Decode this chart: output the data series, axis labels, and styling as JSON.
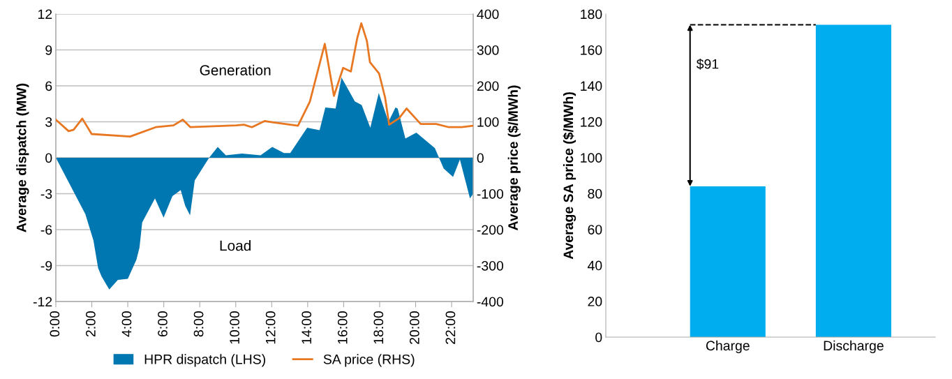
{
  "chart_data": [
    {
      "type": "area",
      "ylabel": "Average dispatch (MW)",
      "y2label": "Average price ($/MWh)",
      "annotations": [
        "Generation",
        "Load"
      ],
      "xlim": [
        0,
        23.2
      ],
      "xticks": [
        {
          "value": 0,
          "label": "0:00"
        },
        {
          "value": 2,
          "label": "2:00"
        },
        {
          "value": 4,
          "label": "4:00"
        },
        {
          "value": 6,
          "label": "6:00"
        },
        {
          "value": 8,
          "label": "8:00"
        },
        {
          "value": 10,
          "label": "10:00"
        },
        {
          "value": 12,
          "label": "12:00"
        },
        {
          "value": 14,
          "label": "14:00"
        },
        {
          "value": 16,
          "label": "16:00"
        },
        {
          "value": 18,
          "label": "18:00"
        },
        {
          "value": 20,
          "label": "20:00"
        },
        {
          "value": 22,
          "label": "22:00"
        }
      ],
      "ylim": [
        -12,
        12
      ],
      "yticks": [
        -12,
        -9,
        -6,
        -3,
        0,
        3,
        6,
        9,
        12
      ],
      "y2lim": [
        -400,
        400
      ],
      "y2ticks": [
        -400,
        -300,
        -200,
        -100,
        0,
        100,
        200,
        300,
        400
      ],
      "grid": "y",
      "legend": "bottom",
      "series": [
        {
          "name": "HPR dispatch (LHS)",
          "type": "area",
          "color": "#0077b0",
          "x": [
            0,
            1.64,
            2.09,
            2.35,
            2.54,
            2.97,
            3.45,
            4.0,
            4.48,
            4.65,
            4.8,
            5.51,
            5.99,
            6.48,
            6.94,
            7.19,
            7.46,
            7.72,
            8.52,
            9.0,
            9.45,
            10.35,
            11.38,
            12.03,
            12.68,
            13.03,
            13.97,
            14.66,
            14.98,
            15.55,
            15.88,
            16.62,
            17.0,
            17.48,
            17.95,
            18.49,
            18.88,
            19.0,
            19.43,
            20.04,
            21.07,
            21.56,
            22.08,
            22.46,
            23.02,
            23.2
          ],
          "values": [
            0,
            -4.7,
            -6.9,
            -9.2,
            -9.9,
            -11.0,
            -10.2,
            -10.1,
            -8.5,
            -7.5,
            -5.4,
            -3.4,
            -5.0,
            -3.2,
            -2.7,
            -4.0,
            -4.8,
            -1.9,
            0,
            0.9,
            0.2,
            0.35,
            0.2,
            0.9,
            0.4,
            0.4,
            2.5,
            2.3,
            4.2,
            4.1,
            6.7,
            4.7,
            4.4,
            2.5,
            5.4,
            3.0,
            4.2,
            4.1,
            1.6,
            2.1,
            0.8,
            -0.9,
            -1.6,
            -0.15,
            -3.4,
            -3.0
          ]
        },
        {
          "name": "SA price (RHS)",
          "type": "line",
          "axis": "y2",
          "color": "#e87722",
          "x": [
            0,
            0.71,
            0.99,
            1.47,
            1.99,
            4.13,
            5.55,
            6.54,
            7.06,
            7.48,
            10.03,
            10.45,
            10.9,
            11.6,
            12.03,
            13.46,
            14.12,
            14.95,
            15.46,
            15.97,
            16.4,
            16.75,
            16.98,
            17.29,
            17.46,
            17.97,
            18.3,
            18.53,
            19.08,
            19.5,
            20.28,
            21.14,
            21.85,
            22.56,
            23.2
          ],
          "values": [
            106,
            74,
            78,
            109,
            66,
            59,
            85,
            90,
            106,
            85,
            90,
            92,
            85,
            102,
            99,
            89,
            156,
            317,
            172,
            250,
            240,
            332,
            374,
            325,
            266,
            234,
            168,
            92,
            110,
            137,
            94,
            94,
            85,
            85,
            89
          ]
        }
      ]
    },
    {
      "type": "bar",
      "ylabel": "Average SA price ($/MWh)",
      "categories": [
        "Charge",
        "Discharge"
      ],
      "values": [
        84,
        174
      ],
      "color": "#00aeef",
      "ylim": [
        0,
        180
      ],
      "yticks": [
        0,
        20,
        40,
        60,
        80,
        100,
        120,
        140,
        160,
        180
      ],
      "annotations": [
        "$91"
      ],
      "ref_lines": [
        {
          "axis": "y",
          "value": 174,
          "color": "#000000",
          "line_style": "dashed"
        }
      ]
    }
  ]
}
